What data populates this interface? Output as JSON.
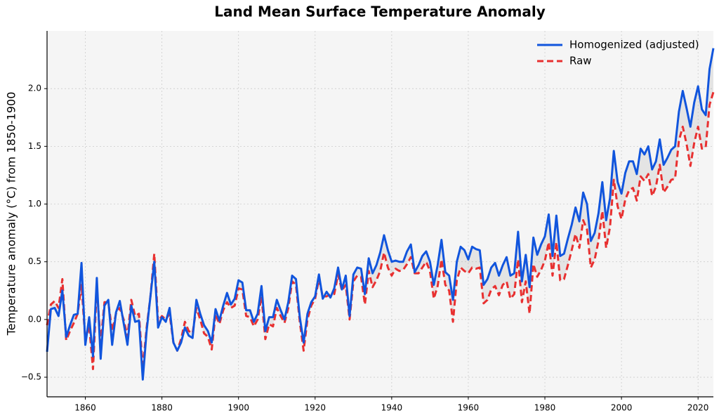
{
  "chart_data": {
    "type": "line",
    "title": "Land Mean Surface Temperature Anomaly",
    "y_label": "Temperature anomaly (°C) from 1850-1900",
    "x": [
      1850,
      1851,
      1852,
      1853,
      1854,
      1855,
      1856,
      1857,
      1858,
      1859,
      1860,
      1861,
      1862,
      1863,
      1864,
      1865,
      1866,
      1867,
      1868,
      1869,
      1870,
      1871,
      1872,
      1873,
      1874,
      1875,
      1876,
      1877,
      1878,
      1879,
      1880,
      1881,
      1882,
      1883,
      1884,
      1885,
      1886,
      1887,
      1888,
      1889,
      1890,
      1891,
      1892,
      1893,
      1894,
      1895,
      1896,
      1897,
      1898,
      1899,
      1900,
      1901,
      1902,
      1903,
      1904,
      1905,
      1906,
      1907,
      1908,
      1909,
      1910,
      1911,
      1912,
      1913,
      1914,
      1915,
      1916,
      1917,
      1918,
      1919,
      1920,
      1921,
      1922,
      1923,
      1924,
      1925,
      1926,
      1927,
      1928,
      1929,
      1930,
      1931,
      1932,
      1933,
      1934,
      1935,
      1936,
      1937,
      1938,
      1939,
      1940,
      1941,
      1942,
      1943,
      1944,
      1945,
      1946,
      1947,
      1948,
      1949,
      1950,
      1951,
      1952,
      1953,
      1954,
      1955,
      1956,
      1957,
      1958,
      1959,
      1960,
      1961,
      1962,
      1963,
      1964,
      1965,
      1966,
      1967,
      1968,
      1969,
      1970,
      1971,
      1972,
      1973,
      1974,
      1975,
      1976,
      1977,
      1978,
      1979,
      1980,
      1981,
      1982,
      1983,
      1984,
      1985,
      1986,
      1987,
      1988,
      1989,
      1990,
      1991,
      1992,
      1993,
      1994,
      1995,
      1996,
      1997,
      1998,
      1999,
      2000,
      2001,
      2002,
      2003,
      2004,
      2005,
      2006,
      2007,
      2008,
      2009,
      2010,
      2011,
      2012,
      2013,
      2014,
      2015,
      2016,
      2017,
      2018,
      2019,
      2020,
      2021,
      2022,
      2023,
      2024
    ],
    "series": [
      {
        "name": "Homogenized (adjusted)",
        "color": "#1155dd",
        "dashed": false,
        "values": [
          -0.28,
          0.09,
          0.1,
          0.03,
          0.25,
          -0.15,
          -0.05,
          0.04,
          0.05,
          0.49,
          -0.22,
          0.02,
          -0.32,
          0.36,
          -0.34,
          0.12,
          0.17,
          -0.22,
          0.06,
          0.16,
          -0.03,
          -0.22,
          0.12,
          -0.02,
          -0.01,
          -0.52,
          -0.1,
          0.2,
          0.5,
          -0.07,
          0.02,
          -0.02,
          0.1,
          -0.2,
          -0.27,
          -0.2,
          -0.07,
          -0.14,
          -0.16,
          0.17,
          0.05,
          -0.05,
          -0.1,
          -0.2,
          0.09,
          -0.01,
          0.12,
          0.23,
          0.13,
          0.18,
          0.34,
          0.32,
          0.08,
          0.08,
          -0.02,
          0.05,
          0.29,
          -0.1,
          0.02,
          0.02,
          0.17,
          0.08,
          0.0,
          0.15,
          0.38,
          0.35,
          0.02,
          -0.2,
          0.05,
          0.15,
          0.2,
          0.39,
          0.18,
          0.24,
          0.19,
          0.27,
          0.45,
          0.26,
          0.38,
          0.03,
          0.39,
          0.45,
          0.44,
          0.22,
          0.53,
          0.4,
          0.47,
          0.58,
          0.73,
          0.6,
          0.5,
          0.51,
          0.5,
          0.5,
          0.59,
          0.65,
          0.41,
          0.47,
          0.55,
          0.59,
          0.5,
          0.3,
          0.47,
          0.69,
          0.41,
          0.38,
          0.17,
          0.5,
          0.63,
          0.6,
          0.52,
          0.63,
          0.61,
          0.6,
          0.3,
          0.35,
          0.45,
          0.49,
          0.38,
          0.47,
          0.54,
          0.38,
          0.4,
          0.76,
          0.33,
          0.56,
          0.28,
          0.71,
          0.56,
          0.65,
          0.72,
          0.91,
          0.55,
          0.9,
          0.55,
          0.57,
          0.7,
          0.82,
          0.97,
          0.85,
          1.1,
          1.0,
          0.68,
          0.75,
          0.92,
          1.19,
          0.86,
          1.05,
          1.46,
          1.19,
          1.09,
          1.27,
          1.37,
          1.37,
          1.26,
          1.48,
          1.43,
          1.5,
          1.3,
          1.37,
          1.56,
          1.34,
          1.4,
          1.47,
          1.5,
          1.8,
          1.98,
          1.83,
          1.67,
          1.88,
          2.02,
          1.82,
          1.77,
          2.17,
          2.35
        ]
      },
      {
        "name": "Raw",
        "color": "#e83030",
        "dashed": true,
        "values": [
          -0.05,
          0.13,
          0.16,
          0.1,
          0.35,
          -0.18,
          -0.1,
          -0.03,
          0.05,
          0.3,
          -0.18,
          -0.05,
          -0.43,
          0.28,
          -0.2,
          0.15,
          0.15,
          -0.1,
          0.05,
          0.1,
          0.0,
          -0.15,
          0.17,
          0.03,
          0.05,
          -0.43,
          -0.07,
          0.2,
          0.57,
          -0.02,
          0.03,
          0.0,
          0.05,
          -0.2,
          -0.27,
          -0.17,
          -0.02,
          -0.1,
          -0.12,
          0.1,
          0.0,
          -0.12,
          -0.15,
          -0.26,
          0.05,
          -0.04,
          0.08,
          0.15,
          0.1,
          0.12,
          0.27,
          0.26,
          0.03,
          0.02,
          -0.06,
          0.0,
          0.2,
          -0.17,
          -0.04,
          -0.06,
          0.1,
          0.03,
          -0.03,
          0.1,
          0.33,
          0.3,
          -0.02,
          -0.27,
          0.0,
          0.12,
          0.18,
          0.35,
          0.2,
          0.2,
          0.22,
          0.22,
          0.39,
          0.25,
          0.3,
          0.0,
          0.33,
          0.38,
          0.37,
          0.13,
          0.42,
          0.28,
          0.34,
          0.42,
          0.58,
          0.45,
          0.38,
          0.44,
          0.42,
          0.43,
          0.48,
          0.54,
          0.4,
          0.4,
          0.45,
          0.5,
          0.42,
          0.18,
          0.29,
          0.52,
          0.3,
          0.25,
          -0.02,
          0.34,
          0.45,
          0.42,
          0.4,
          0.45,
          0.44,
          0.45,
          0.14,
          0.17,
          0.26,
          0.29,
          0.21,
          0.3,
          0.33,
          0.18,
          0.22,
          0.52,
          0.15,
          0.33,
          0.05,
          0.48,
          0.37,
          0.43,
          0.51,
          0.67,
          0.38,
          0.67,
          0.34,
          0.35,
          0.47,
          0.6,
          0.74,
          0.62,
          0.86,
          0.78,
          0.45,
          0.52,
          0.68,
          0.94,
          0.62,
          0.8,
          1.21,
          0.98,
          0.87,
          1.04,
          1.12,
          1.14,
          1.03,
          1.24,
          1.2,
          1.26,
          1.07,
          1.15,
          1.34,
          1.1,
          1.15,
          1.21,
          1.22,
          1.55,
          1.67,
          1.52,
          1.33,
          1.53,
          1.67,
          1.48,
          1.49,
          1.86,
          1.97
        ]
      }
    ],
    "xlim": [
      1850,
      2024
    ],
    "xticks": [
      1860,
      1880,
      1900,
      1920,
      1940,
      1960,
      1980,
      2000,
      2020
    ],
    "ylim": [
      -0.67,
      2.5
    ],
    "yticks": [
      {
        "value": -0.5,
        "label": "−0.5"
      },
      {
        "value": 0,
        "label": "0.0"
      },
      {
        "value": 0.5,
        "label": "0.5"
      },
      {
        "value": 1,
        "label": "1.0"
      },
      {
        "value": 1.5,
        "label": "1.5"
      },
      {
        "value": 2,
        "label": "2.0"
      }
    ],
    "grid": true,
    "fill_between": true,
    "legend": "upper right"
  }
}
